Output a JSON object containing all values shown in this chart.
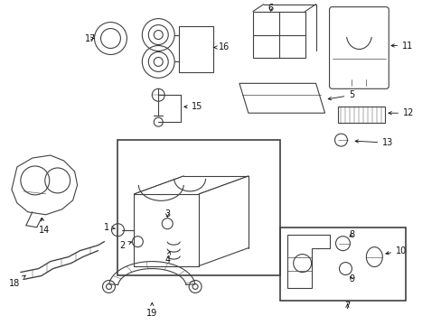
{
  "bg_color": "#ffffff",
  "line_color": "#404040",
  "fig_width": 4.89,
  "fig_height": 3.6,
  "dpi": 100
}
